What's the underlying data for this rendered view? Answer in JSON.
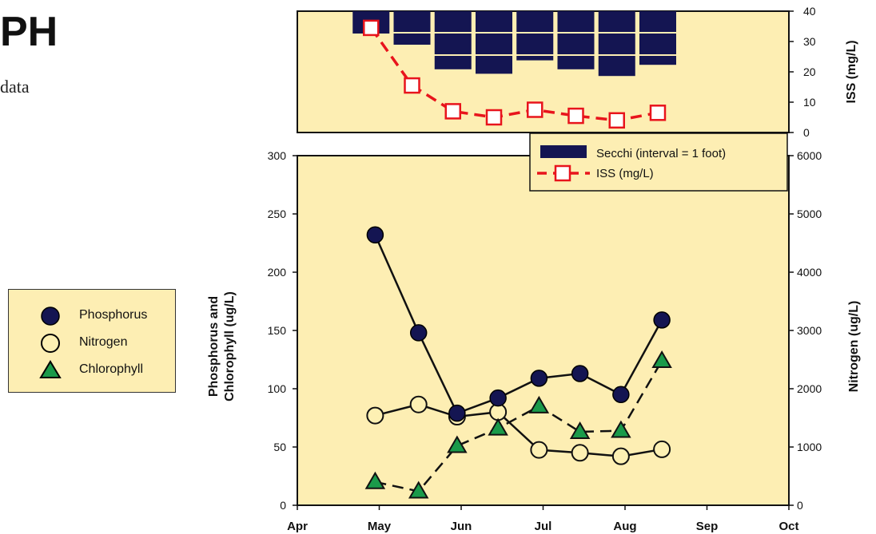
{
  "page": {
    "title_fragment": "PH",
    "subtitle_fragment": "data"
  },
  "colors": {
    "panel_bg": "#fdeeb3",
    "phosphorus": "#141552",
    "nitrogen": "#fdf0b3",
    "chlorophyll": "#1a9a4a",
    "secchi": "#141552",
    "iss": "#e8141c"
  },
  "side_legend": {
    "items": [
      {
        "label": "Phosphorus",
        "marker": "filled-circle"
      },
      {
        "label": "Nitrogen",
        "marker": "open-circle"
      },
      {
        "label": "Chlorophyll",
        "marker": "triangle"
      }
    ]
  },
  "chart_data": [
    {
      "type": "bar",
      "description_panel": "top",
      "series": [
        {
          "name": "Secchi (interval = 1 foot)",
          "x": [
            0.9,
            1.4,
            1.9,
            2.4,
            2.9,
            3.4,
            3.9,
            4.4
          ],
          "values": [
            1,
            1.5,
            2.6,
            2.8,
            2.2,
            2.6,
            2.9,
            2.4
          ],
          "unit": "feet"
        },
        {
          "name": "ISS (mg/L)",
          "x": [
            0.9,
            1.4,
            1.9,
            2.4,
            2.9,
            3.4,
            3.9,
            4.4
          ],
          "values": [
            34.5,
            15.5,
            7,
            5,
            7.5,
            5.5,
            4,
            6.5
          ]
        }
      ],
      "right_axis": {
        "label": "ISS (mg/L)",
        "ylim": [
          0,
          40
        ],
        "ticks": [
          "0",
          "10",
          "20",
          "30",
          "40"
        ]
      },
      "legend_placement": "bottom-right"
    },
    {
      "type": "line",
      "description_panel": "bottom",
      "x_categories": [
        "Apr",
        "May",
        "Jun",
        "Jul",
        "Aug",
        "Sep",
        "Oct"
      ],
      "xlim": [
        0,
        6
      ],
      "left_axis": {
        "label_line1": "Phosphorus and",
        "label_line2": "Chlorophyll (ug/L)",
        "ylim": [
          0,
          300
        ],
        "ticks": [
          "0",
          "50",
          "100",
          "150",
          "200",
          "250",
          "300"
        ]
      },
      "right_axis": {
        "label": "Nitrogen (ug/L)",
        "ylim": [
          0,
          6000
        ],
        "ticks": [
          "0",
          "1000",
          "2000",
          "3000",
          "4000",
          "5000",
          "6000"
        ]
      },
      "series": [
        {
          "name": "Phosphorus",
          "axis": "left",
          "style": "solid",
          "x": [
            0.95,
            1.48,
            1.95,
            2.45,
            2.95,
            3.45,
            3.95,
            4.45
          ],
          "values": [
            232,
            148,
            79,
            92,
            109,
            113,
            95,
            159
          ]
        },
        {
          "name": "Nitrogen",
          "axis": "right",
          "style": "solid",
          "x": [
            0.95,
            1.48,
            1.95,
            2.45,
            2.95,
            3.45,
            3.95,
            4.45
          ],
          "values": [
            1540,
            1730,
            1520,
            1600,
            950,
            900,
            840,
            960
          ]
        },
        {
          "name": "Chlorophyll",
          "axis": "left",
          "style": "dashed",
          "x": [
            0.95,
            1.48,
            1.95,
            2.45,
            2.95,
            3.45,
            3.95,
            4.45
          ],
          "values": [
            20,
            12,
            51,
            66,
            85,
            63,
            64,
            124
          ]
        }
      ]
    }
  ]
}
